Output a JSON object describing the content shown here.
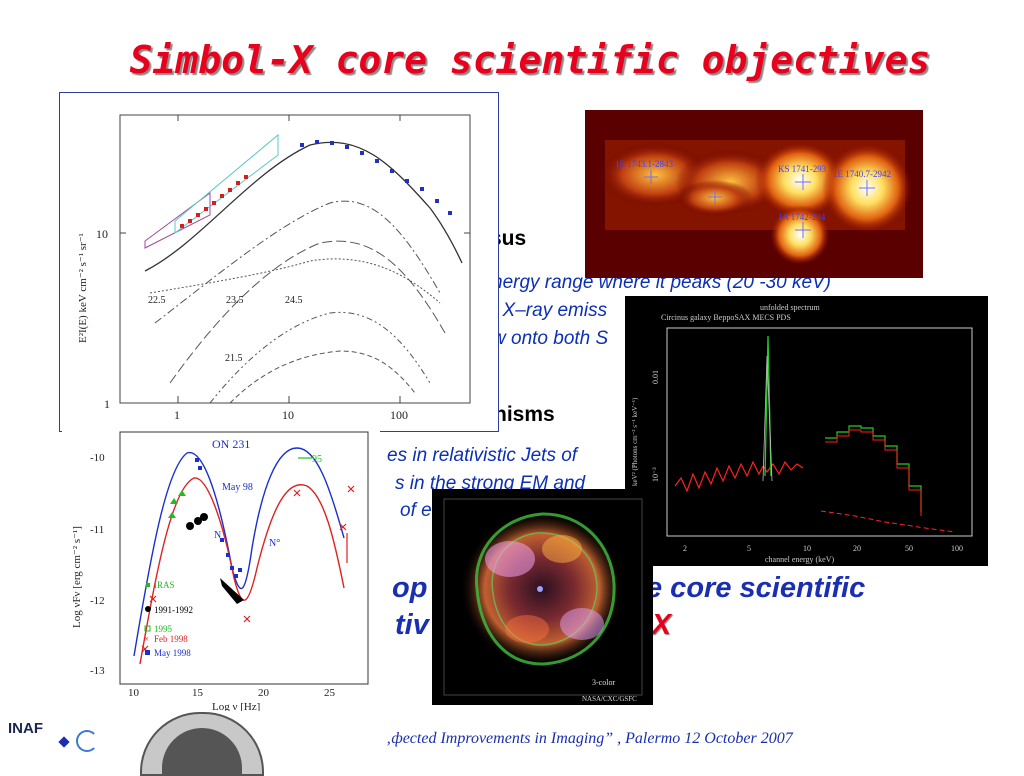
{
  "title": "Simbol-X core scientific objectives",
  "sections": {
    "heading_1_fragment": "sus",
    "line_1": "nergy range where it peaks (20 -30 keV)",
    "line_2": "/ X–ray emiss",
    "line_3": "w onto both S",
    "heading_2_fragment": "nisms",
    "line_4": "es in relativistic Jets of",
    "line_5": "s in the strong EM and",
    "line_6": "of e",
    "big_line_1_a": "op",
    "big_line_1_b": "e core scientific",
    "big_line_2_a": "tiv",
    "big_line_2_b": "-X"
  },
  "footer": {
    "text": "‚фected Improvements in Imaging” , Palermo 12 October 2007",
    "logo_text": "INAF"
  },
  "figure_cxb": {
    "ylabel": "E²I(E)  keV  cm⁻²  s⁻¹  sr⁻¹",
    "yticks": [
      "10",
      "1"
    ],
    "xticks": [
      "1",
      "10",
      "100"
    ],
    "labels": [
      "22.5",
      "23.5",
      "24.5",
      "21.5"
    ]
  },
  "figure_galactic_center": {
    "labels": [
      "1E 1740.7-2942",
      "KS 1741-293",
      "1A 1742-294",
      "1E 1743.1-2843"
    ]
  },
  "figure_circinus": {
    "top_label": "unfolded spectrum",
    "title": "Circinus galaxy BeppoSAX MECS PDS",
    "xlabel": "channel energy (keV)",
    "ylabel": "keV² (Photons cm⁻² s⁻¹ keV⁻¹)",
    "xticks": [
      "2",
      "5",
      "10",
      "20",
      "50",
      "100"
    ],
    "yticks": [
      "0.01",
      "10⁻³"
    ]
  },
  "figure_on231": {
    "title": "ON 231",
    "xlabel": "Log ν  [Hz]",
    "ylabel": "Log νFν [erg cm⁻² s⁻¹]",
    "xticks": [
      "10",
      "15",
      "20",
      "25"
    ],
    "yticks": [
      "-10",
      "-11",
      "-12",
      "-13"
    ],
    "annotations": [
      "May 98",
      "95",
      "N",
      "N°"
    ],
    "legend": [
      {
        "label": "IRAS",
        "color": "#22bb22"
      },
      {
        "label": "1991-1992",
        "color": "#000000"
      },
      {
        "label": "1995",
        "color": "#22bb22"
      },
      {
        "label": "Feb 1998",
        "color": "#dd2222"
      },
      {
        "label": "May 1998",
        "color": "#1a2fcc"
      }
    ]
  },
  "figure_casa": {
    "label_1": "3-color",
    "label_2": "NASA/CXC/GSFC"
  }
}
